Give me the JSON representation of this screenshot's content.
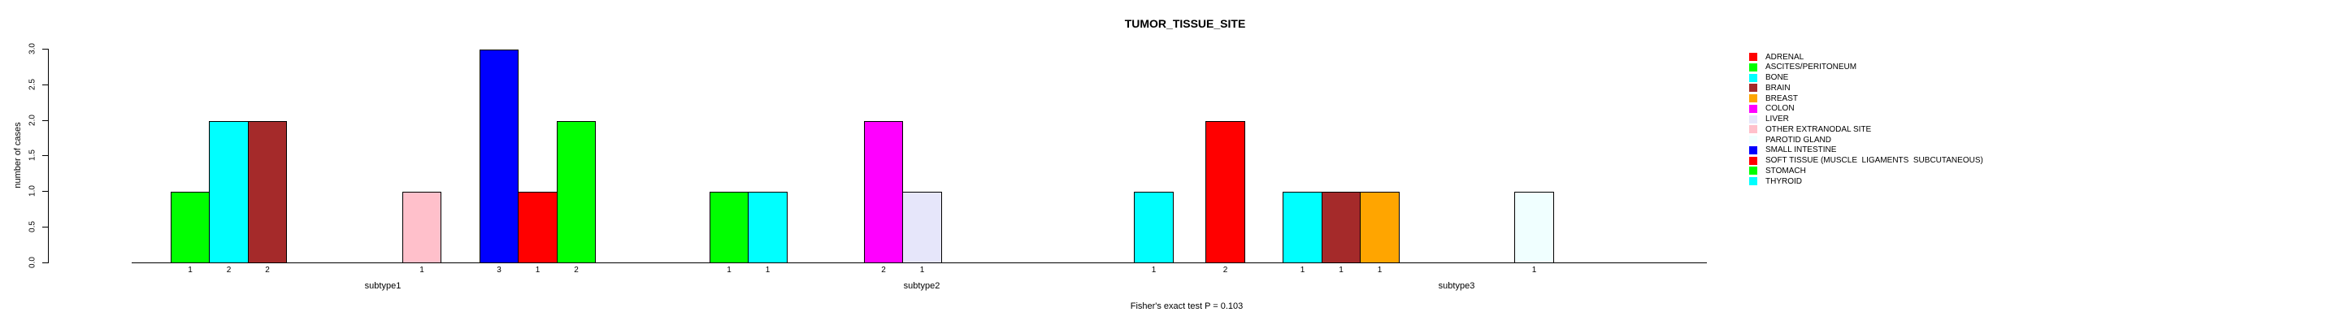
{
  "chart_data": {
    "type": "bar",
    "title": "TUMOR_TISSUE_SITE",
    "ylabel": "number of cases",
    "xlabel": "",
    "annotation": "Fisher's exact test P = 0.103",
    "ylim": [
      0,
      3
    ],
    "yticks": [
      "0.0",
      "0.5",
      "1.0",
      "1.5",
      "2.0",
      "2.5",
      "3.0"
    ],
    "grid": false,
    "legend_position": "right",
    "bar_value_labels_shown": true,
    "categories": [
      "ADRENAL",
      "ASCITES/PERITONEUM",
      "BONE",
      "BRAIN",
      "BREAST",
      "COLON",
      "LIVER",
      "OTHER EXTRANODAL SITE",
      "PAROTID GLAND",
      "SMALL INTESTINE",
      "SOFT TISSUE (MUSCLE  LIGAMENTS  SUBCUTANEOUS)",
      "STOMACH",
      "THYROID"
    ],
    "colors": [
      "#FF0000",
      "#00FF00",
      "#00FFFF",
      "#A52A2A",
      "#FFA500",
      "#FF00FF",
      "#E6E6FA",
      "#FFC0CB",
      "#F0FFFF",
      "#0000FF",
      "#FF0000",
      "#00FF00",
      "#00FFFF"
    ],
    "series": [
      {
        "name": "subtype1",
        "values": [
          0,
          1,
          2,
          2,
          0,
          0,
          0,
          1,
          0,
          3,
          1,
          2,
          0
        ]
      },
      {
        "name": "subtype2",
        "values": [
          0,
          1,
          1,
          0,
          0,
          2,
          1,
          0,
          0,
          0,
          0,
          0,
          1
        ]
      },
      {
        "name": "subtype3",
        "values": [
          2,
          0,
          1,
          1,
          1,
          0,
          0,
          0,
          1,
          0,
          0,
          0,
          0
        ]
      }
    ],
    "axis_color": "#000000",
    "text_color": "#000000",
    "background_color": "#FFFFFF"
  }
}
